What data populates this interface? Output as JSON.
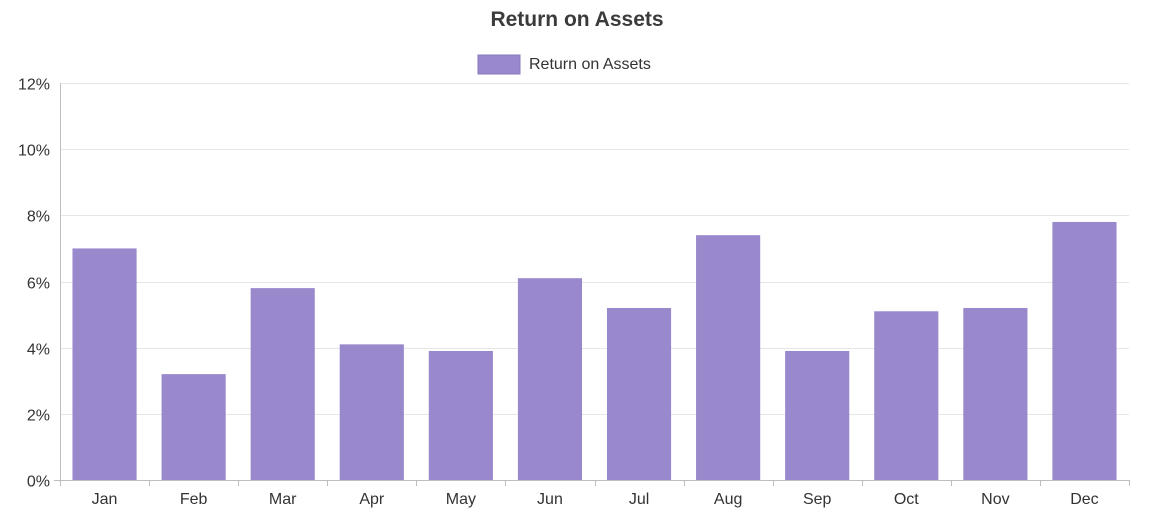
{
  "chart_data": {
    "type": "bar",
    "title": "Return on Assets",
    "xlabel": "",
    "ylabel": "",
    "categories": [
      "Jan",
      "Feb",
      "Mar",
      "Apr",
      "May",
      "Jun",
      "Jul",
      "Aug",
      "Sep",
      "Oct",
      "Nov",
      "Dec"
    ],
    "series": [
      {
        "name": "Return on Assets",
        "values": [
          7.0,
          3.2,
          5.8,
          4.1,
          3.9,
          6.1,
          5.2,
          7.4,
          3.9,
          5.1,
          5.2,
          7.8
        ],
        "color": "#9988cc"
      }
    ],
    "ylim": [
      0,
      12
    ],
    "yticks": [
      0,
      2,
      4,
      6,
      8,
      10,
      12
    ],
    "ytick_labels": [
      "0%",
      "2%",
      "4%",
      "6%",
      "8%",
      "10%",
      "12%"
    ],
    "grid": true,
    "legend_position": "top-center"
  }
}
